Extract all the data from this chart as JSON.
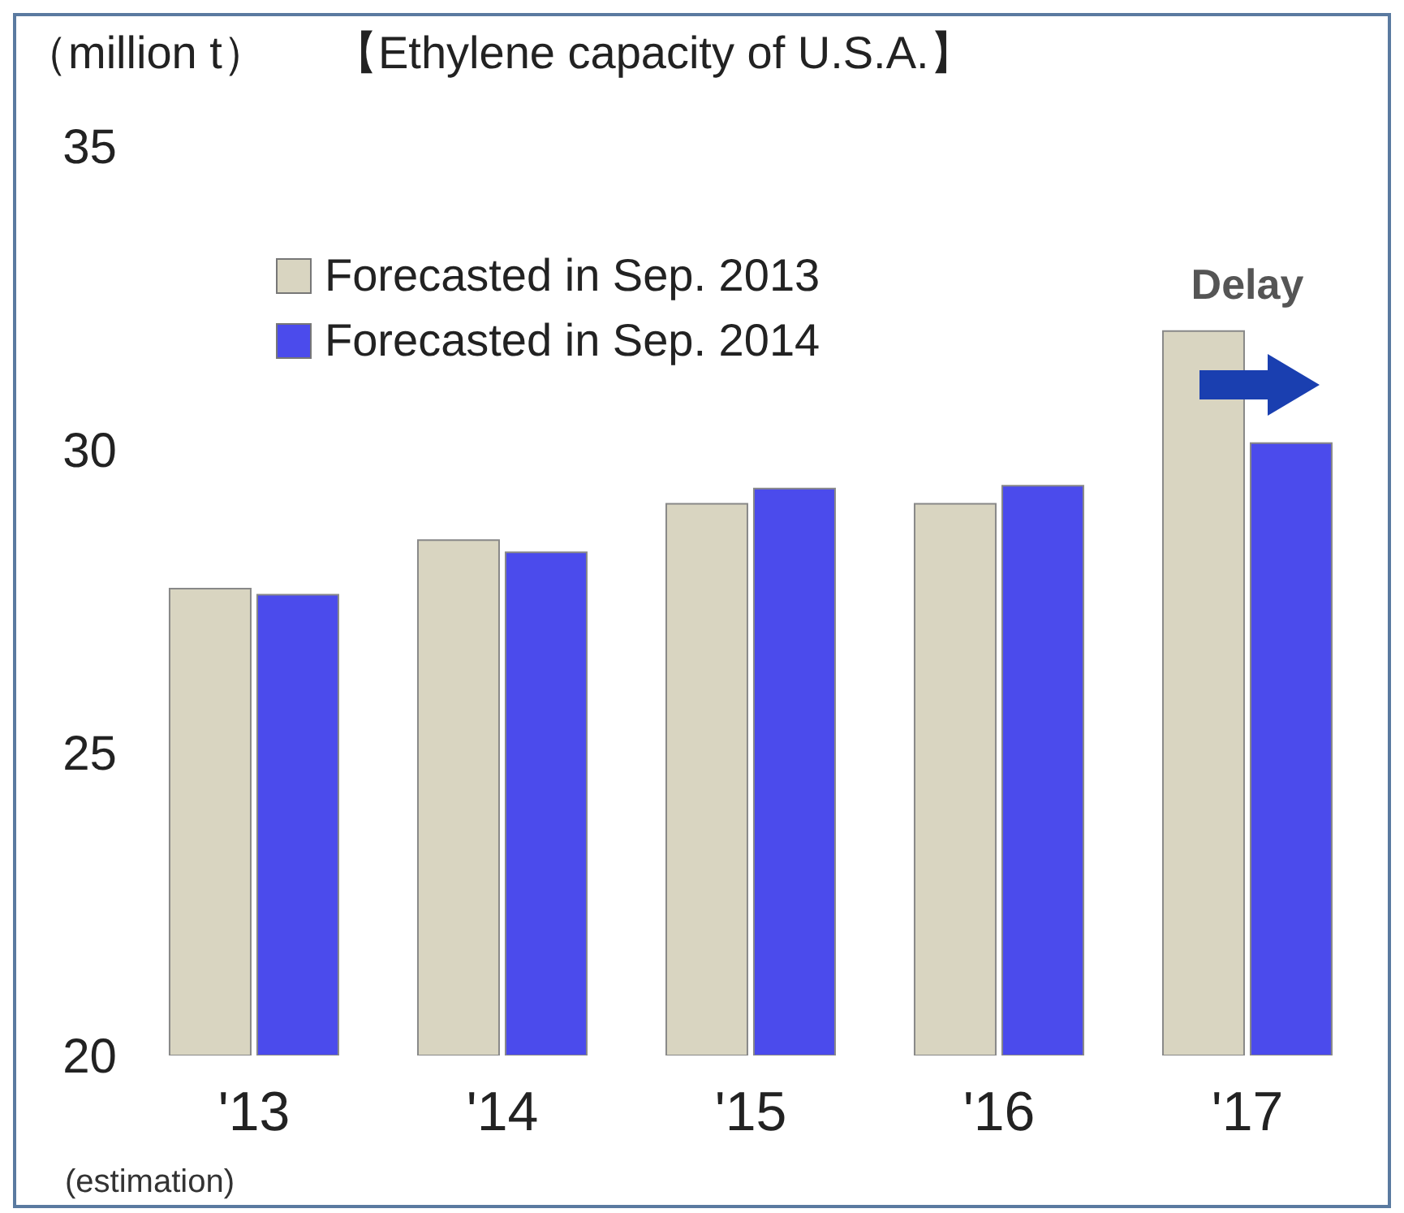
{
  "chart_data": {
    "type": "bar",
    "title": "【Ethylene capacity of U.S.A.】",
    "categories": [
      "'13",
      "'14",
      "'15",
      "'16",
      "'17"
    ],
    "series": [
      {
        "name": "Forecasted in Sep. 2013",
        "color": "#d9d5c1",
        "values": [
          27.7,
          28.5,
          29.1,
          29.1,
          31.95
        ]
      },
      {
        "name": "Forecasted in Sep. 2014",
        "color": "#4b4bec",
        "values": [
          27.6,
          28.3,
          29.35,
          29.4,
          30.1
        ]
      }
    ],
    "ylim": [
      20,
      35
    ],
    "yticks": [
      20,
      25,
      30,
      35
    ],
    "grid": false,
    "legend": "top left",
    "annotations": [
      "（million t）",
      "Delay",
      "(estimation)"
    ]
  }
}
